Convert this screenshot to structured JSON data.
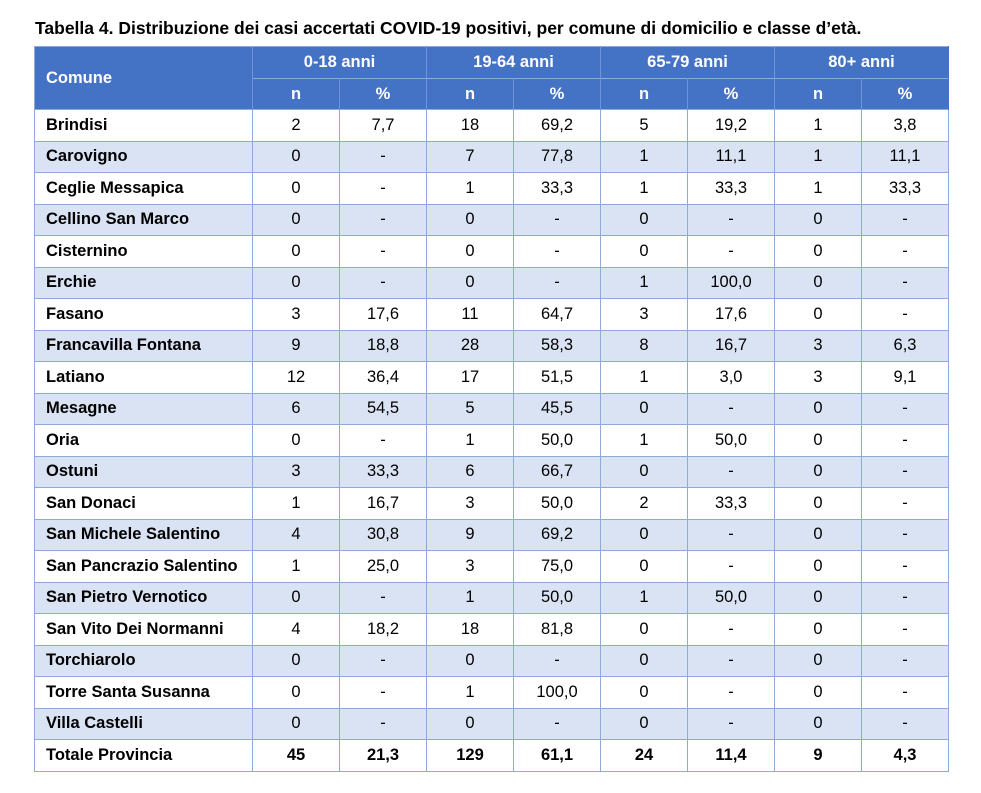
{
  "caption": "Tabella 4. Distribuzione dei casi accertati COVID-19 positivi, per comune di domicilio e classe d’età.",
  "header": {
    "comune": "Comune",
    "groups": [
      "0-18 anni",
      "19-64 anni",
      "65-79 anni",
      "80+ anni"
    ],
    "sub": [
      "n",
      "%",
      "n",
      "%",
      "n",
      "%",
      "n",
      "%"
    ]
  },
  "rows": [
    [
      "Brindisi",
      "2",
      "7,7",
      "18",
      "69,2",
      "5",
      "19,2",
      "1",
      "3,8"
    ],
    [
      "Carovigno",
      "0",
      "-",
      "7",
      "77,8",
      "1",
      "11,1",
      "1",
      "11,1"
    ],
    [
      "Ceglie Messapica",
      "0",
      "-",
      "1",
      "33,3",
      "1",
      "33,3",
      "1",
      "33,3"
    ],
    [
      "Cellino San Marco",
      "0",
      "-",
      "0",
      "-",
      "0",
      "-",
      "0",
      "-"
    ],
    [
      "Cisternino",
      "0",
      "-",
      "0",
      "-",
      "0",
      "-",
      "0",
      "-"
    ],
    [
      "Erchie",
      "0",
      "-",
      "0",
      "-",
      "1",
      "100,0",
      "0",
      "-"
    ],
    [
      "Fasano",
      "3",
      "17,6",
      "11",
      "64,7",
      "3",
      "17,6",
      "0",
      "-"
    ],
    [
      "Francavilla Fontana",
      "9",
      "18,8",
      "28",
      "58,3",
      "8",
      "16,7",
      "3",
      "6,3"
    ],
    [
      "Latiano",
      "12",
      "36,4",
      "17",
      "51,5",
      "1",
      "3,0",
      "3",
      "9,1"
    ],
    [
      "Mesagne",
      "6",
      "54,5",
      "5",
      "45,5",
      "0",
      "-",
      "0",
      "-"
    ],
    [
      "Oria",
      "0",
      "-",
      "1",
      "50,0",
      "1",
      "50,0",
      "0",
      "-"
    ],
    [
      "Ostuni",
      "3",
      "33,3",
      "6",
      "66,7",
      "0",
      "-",
      "0",
      "-"
    ],
    [
      "San Donaci",
      "1",
      "16,7",
      "3",
      "50,0",
      "2",
      "33,3",
      "0",
      "-"
    ],
    [
      "San Michele Salentino",
      "4",
      "30,8",
      "9",
      "69,2",
      "0",
      "-",
      "0",
      "-"
    ],
    [
      "San Pancrazio Salentino",
      "1",
      "25,0",
      "3",
      "75,0",
      "0",
      "-",
      "0",
      "-"
    ],
    [
      "San Pietro Vernotico",
      "0",
      "-",
      "1",
      "50,0",
      "1",
      "50,0",
      "0",
      "-"
    ],
    [
      "San Vito Dei Normanni",
      "4",
      "18,2",
      "18",
      "81,8",
      "0",
      "-",
      "0",
      "-"
    ],
    [
      "Torchiarolo",
      "0",
      "-",
      "0",
      "-",
      "0",
      "-",
      "0",
      "-"
    ],
    [
      "Torre Santa Susanna",
      "0",
      "-",
      "1",
      "100,0",
      "0",
      "-",
      "0",
      "-"
    ],
    [
      "Villa Castelli",
      "0",
      "-",
      "0",
      "-",
      "0",
      "-",
      "0",
      "-"
    ]
  ],
  "total": [
    "Totale Provincia",
    "45",
    "21,3",
    "129",
    "61,1",
    "24",
    "11,4",
    "9",
    "4,3"
  ],
  "colors": {
    "header_bg": "#4472c4",
    "header_text": "#ffffff",
    "band_row": "#dae3f3",
    "border": "#8eaadb"
  }
}
